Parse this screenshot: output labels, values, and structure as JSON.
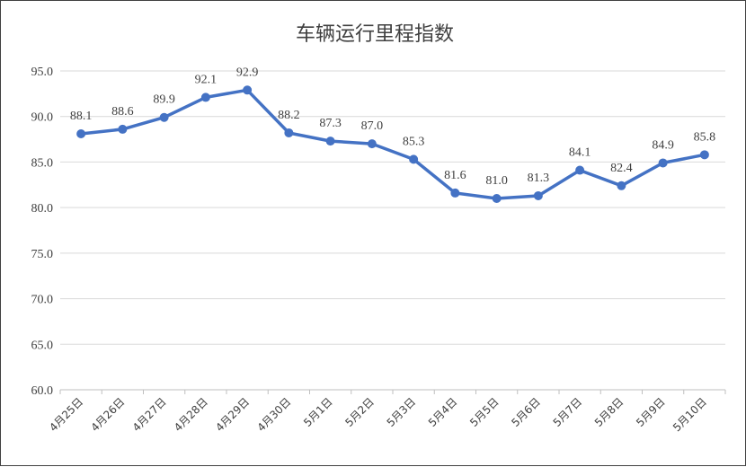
{
  "chart_data": {
    "type": "line",
    "title": "车辆运行里程指数",
    "xlabel": "",
    "ylabel": "",
    "categories": [
      "4月25日",
      "4月26日",
      "4月27日",
      "4月28日",
      "4月29日",
      "4月30日",
      "5月1日",
      "5月2日",
      "5月3日",
      "5月4日",
      "5月5日",
      "5月6日",
      "5月7日",
      "5月8日",
      "5月9日",
      "5月10日"
    ],
    "values": [
      88.1,
      88.6,
      89.9,
      92.1,
      92.9,
      88.2,
      87.3,
      87.0,
      85.3,
      81.6,
      81.0,
      81.3,
      84.1,
      82.4,
      84.9,
      85.8
    ],
    "data_labels": [
      "88.1",
      "88.6",
      "89.9",
      "92.1",
      "92.9",
      "88.2",
      "87.3",
      "87.0",
      "85.3",
      "81.6",
      "81.0",
      "81.3",
      "84.1",
      "82.4",
      "84.9",
      "85.8"
    ],
    "y_ticks": [
      "60.0",
      "65.0",
      "70.0",
      "75.0",
      "80.0",
      "85.0",
      "90.0",
      "95.0"
    ],
    "ylim": [
      60,
      95
    ],
    "grid": true,
    "legend": "none",
    "colors": {
      "line": "#4472C4",
      "grid": "#D9D9D9",
      "axis": "#BFBFBF",
      "text": "#404040"
    }
  }
}
